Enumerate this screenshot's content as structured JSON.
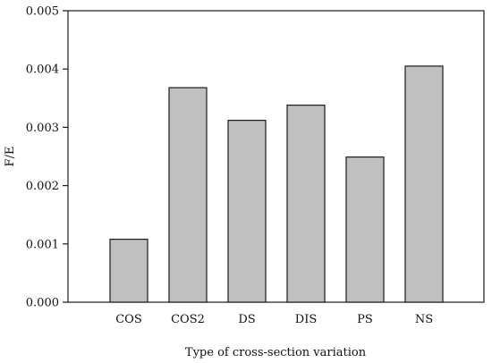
{
  "chart_data": {
    "type": "bar",
    "title": "",
    "xlabel": "Type of cross-section variation",
    "ylabel": "F/E",
    "categories": [
      "COS",
      "COS2",
      "DS",
      "DIS",
      "PS",
      "NS"
    ],
    "values": [
      0.00108,
      0.00368,
      0.00312,
      0.00338,
      0.00249,
      0.00405
    ],
    "ylim": [
      0,
      0.005
    ],
    "yticks": [
      "0.000",
      "0.001",
      "0.002",
      "0.003",
      "0.004",
      "0.005"
    ],
    "grid": false,
    "legend": "none",
    "bar_color": "#c0c0c0",
    "edge_color": "#1a1a1a"
  }
}
